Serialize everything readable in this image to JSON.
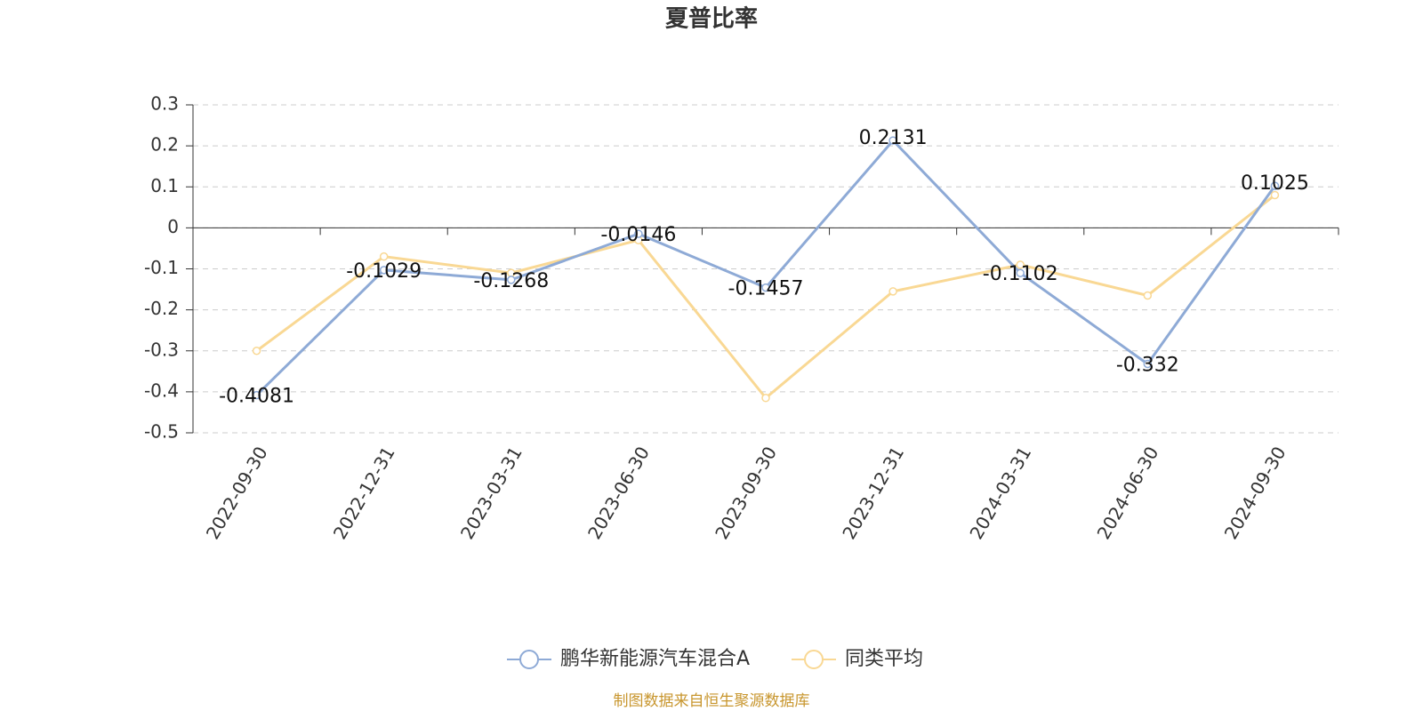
{
  "chart_data": {
    "type": "line",
    "title": "夏普比率",
    "categories": [
      "2022-09-30",
      "2022-12-31",
      "2023-03-31",
      "2023-06-30",
      "2023-09-30",
      "2023-12-31",
      "2024-03-31",
      "2024-06-30",
      "2024-09-30"
    ],
    "series": [
      {
        "name": "鹏华新能源汽车混合A",
        "color": "#8eaad6",
        "values": [
          -0.4081,
          -0.1029,
          -0.1268,
          -0.0146,
          -0.1457,
          0.2131,
          -0.1102,
          -0.332,
          0.1025
        ],
        "labels": true
      },
      {
        "name": "同类平均",
        "color": "#f9d894",
        "values": [
          -0.3,
          -0.07,
          -0.11,
          -0.03,
          -0.415,
          -0.155,
          -0.09,
          -0.165,
          0.08
        ],
        "labels": false
      }
    ],
    "ylim": [
      -0.5,
      0.3
    ],
    "yticks": [
      -0.5,
      -0.4,
      -0.3,
      -0.2,
      -0.1,
      0,
      0.1,
      0.2,
      0.3
    ],
    "grid": true,
    "source": "制图数据来自恒生聚源数据库"
  }
}
